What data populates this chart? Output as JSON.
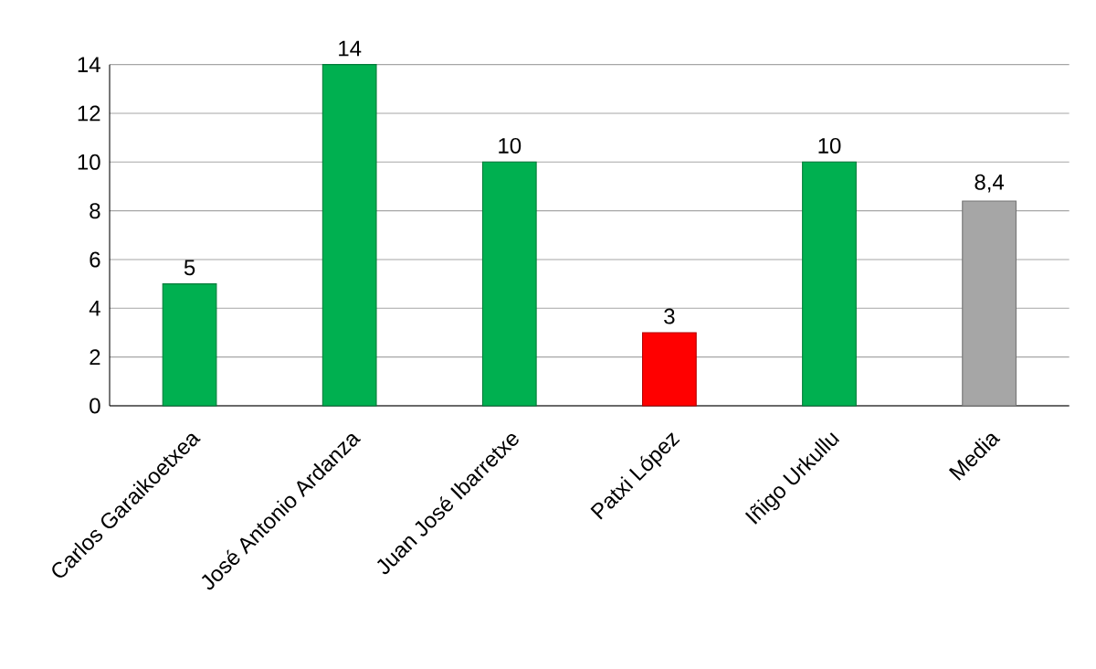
{
  "chart_data": {
    "type": "bar",
    "categories": [
      "Carlos Garaikoetxea",
      "José Antonio Ardanza",
      "Juan José Ibarretxe",
      "Patxi López",
      "Iñigo Urkullu",
      "Media"
    ],
    "values": [
      5,
      14,
      10,
      3,
      10,
      8.4
    ],
    "value_labels": [
      "5",
      "14",
      "10",
      "3",
      "10",
      "8,4"
    ],
    "colors": [
      "#00b050",
      "#00b050",
      "#00b050",
      "#ff0000",
      "#00b050",
      "#a6a6a6"
    ],
    "ylim": [
      0,
      14
    ],
    "yticks": [
      0,
      2,
      4,
      6,
      8,
      10,
      12,
      14
    ],
    "grid": "y"
  }
}
